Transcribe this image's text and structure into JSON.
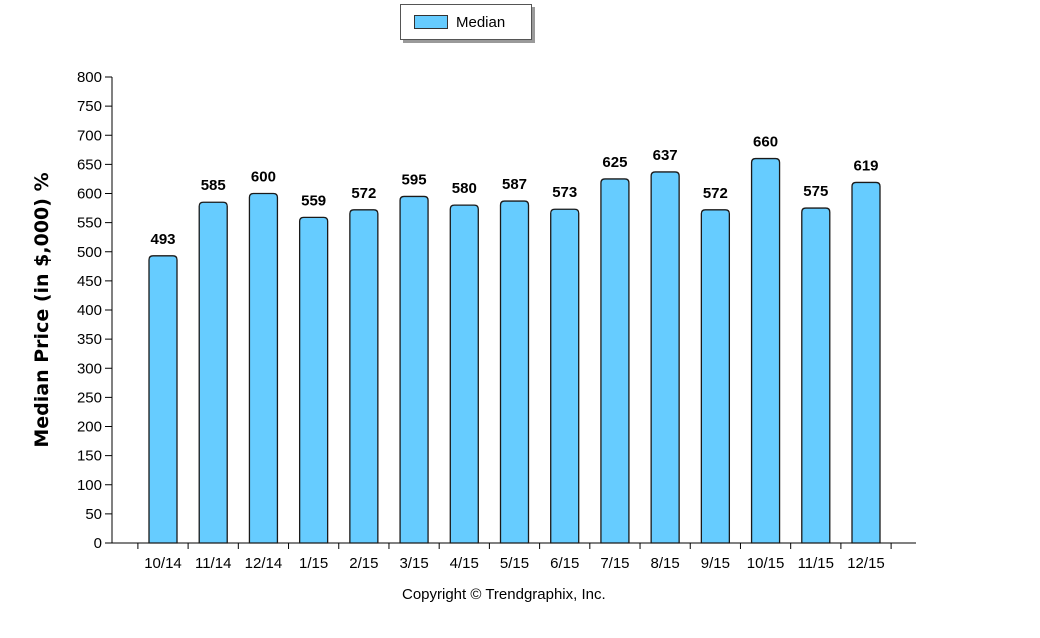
{
  "legend": {
    "label": "Median",
    "swatch_color": "#66ccff"
  },
  "copyright": "Copyright © Trendgraphix, Inc.",
  "chart_data": {
    "type": "bar",
    "title": "",
    "xlabel": "",
    "ylabel": "Median Price (in $,000) %",
    "ylim": [
      0,
      800
    ],
    "yticks": [
      0,
      50,
      100,
      150,
      200,
      250,
      300,
      350,
      400,
      450,
      500,
      550,
      600,
      650,
      700,
      750,
      800
    ],
    "grid": false,
    "legend_position": "top-center",
    "bar_color": "#66ccff",
    "categories": [
      "10/14",
      "11/14",
      "12/14",
      "1/15",
      "2/15",
      "3/15",
      "4/15",
      "5/15",
      "6/15",
      "7/15",
      "8/15",
      "9/15",
      "10/15",
      "11/15",
      "12/15"
    ],
    "series": [
      {
        "name": "Median",
        "values": [
          493,
          585,
          600,
          559,
          572,
          595,
          580,
          587,
          573,
          625,
          637,
          572,
          660,
          575,
          619
        ]
      }
    ]
  }
}
